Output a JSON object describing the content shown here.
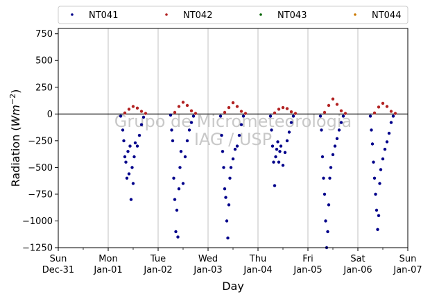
{
  "chart_data": {
    "type": "scatter",
    "title": "",
    "xlabel": "Day",
    "ylabel": "Radiation (Wm⁻²)",
    "ylabel_main": "Radiation (",
    "ylabel_unit": "Wm",
    "ylabel_exp": "−2",
    "ylabel_close": ")",
    "xlim": [
      "2017-12-31",
      "2018-01-07"
    ],
    "ylim": [
      -1250,
      800
    ],
    "yticks": [
      -1250,
      -1000,
      -750,
      -500,
      -250,
      0,
      250,
      500,
      750
    ],
    "yticklabels": [
      "−1250",
      "−1000",
      "−750",
      "−500",
      "−250",
      "0",
      "250",
      "500",
      "750"
    ],
    "xticks": [
      {
        "date": "2017-12-31",
        "day": "Sun",
        "label": "Dec-31"
      },
      {
        "date": "2018-01-01",
        "day": "Mon",
        "label": "Jan-01"
      },
      {
        "date": "2018-01-02",
        "day": "Tue",
        "label": "Jan-02"
      },
      {
        "date": "2018-01-03",
        "day": "Wed",
        "label": "Jan-03"
      },
      {
        "date": "2018-01-04",
        "day": "Thu",
        "label": "Jan-04"
      },
      {
        "date": "2018-01-05",
        "day": "Fri",
        "label": "Jan-05"
      },
      {
        "date": "2018-01-06",
        "day": "Sat",
        "label": "Jan-06"
      },
      {
        "date": "2018-01-07",
        "day": "Sun",
        "label": "Jan-07"
      }
    ],
    "grid": "vertical",
    "legend_position": "top",
    "watermark_lines": [
      "Grupo de Micrometeorologia",
      "IAG / USP"
    ],
    "series": [
      {
        "name": "NT041",
        "color": "#00008b",
        "values": [
          [
            "2018-01-01 06:00",
            -20
          ],
          [
            "2018-01-01 07:00",
            -150
          ],
          [
            "2018-01-01 07:30",
            -250
          ],
          [
            "2018-01-01 08:00",
            -400
          ],
          [
            "2018-01-01 08:30",
            -450
          ],
          [
            "2018-01-01 09:00",
            -600
          ],
          [
            "2018-01-01 09:30",
            -350
          ],
          [
            "2018-01-01 10:00",
            -560
          ],
          [
            "2018-01-01 10:30",
            -300
          ],
          [
            "2018-01-01 11:00",
            -800
          ],
          [
            "2018-01-01 11:30",
            -500
          ],
          [
            "2018-01-01 12:00",
            -650
          ],
          [
            "2018-01-01 12:30",
            -400
          ],
          [
            "2018-01-01 13:00",
            -270
          ],
          [
            "2018-01-01 14:00",
            -300
          ],
          [
            "2018-01-01 15:00",
            -200
          ],
          [
            "2018-01-01 16:00",
            -100
          ],
          [
            "2018-01-01 17:00",
            -30
          ],
          [
            "2018-01-02 06:00",
            -10
          ],
          [
            "2018-01-02 06:30",
            -150
          ],
          [
            "2018-01-02 07:00",
            -250
          ],
          [
            "2018-01-02 07:30",
            -600
          ],
          [
            "2018-01-02 08:00",
            -800
          ],
          [
            "2018-01-02 08:30",
            -1100
          ],
          [
            "2018-01-02 09:00",
            -900
          ],
          [
            "2018-01-02 09:30",
            -1150
          ],
          [
            "2018-01-02 10:00",
            -700
          ],
          [
            "2018-01-02 10:30",
            -500
          ],
          [
            "2018-01-02 11:00",
            -350
          ],
          [
            "2018-01-02 12:00",
            -650
          ],
          [
            "2018-01-02 13:00",
            -400
          ],
          [
            "2018-01-02 14:00",
            -250
          ],
          [
            "2018-01-02 15:00",
            -150
          ],
          [
            "2018-01-02 16:00",
            -80
          ],
          [
            "2018-01-02 17:00",
            -20
          ],
          [
            "2018-01-03 06:00",
            -20
          ],
          [
            "2018-01-03 06:30",
            -200
          ],
          [
            "2018-01-03 07:00",
            -350
          ],
          [
            "2018-01-03 07:30",
            -500
          ],
          [
            "2018-01-03 08:00",
            -700
          ],
          [
            "2018-01-03 08:30",
            -780
          ],
          [
            "2018-01-03 09:00",
            -1000
          ],
          [
            "2018-01-03 09:30",
            -1160
          ],
          [
            "2018-01-03 10:00",
            -850
          ],
          [
            "2018-01-03 10:30",
            -600
          ],
          [
            "2018-01-03 11:00",
            -500
          ],
          [
            "2018-01-03 12:00",
            -420
          ],
          [
            "2018-01-03 13:00",
            -330
          ],
          [
            "2018-01-03 14:00",
            -300
          ],
          [
            "2018-01-03 15:00",
            -200
          ],
          [
            "2018-01-03 16:00",
            -100
          ],
          [
            "2018-01-03 17:00",
            -20
          ],
          [
            "2018-01-04 06:00",
            -20
          ],
          [
            "2018-01-04 06:30",
            -150
          ],
          [
            "2018-01-04 07:00",
            -300
          ],
          [
            "2018-01-04 07:30",
            -450
          ],
          [
            "2018-01-04 08:00",
            -670
          ],
          [
            "2018-01-04 08:30",
            -400
          ],
          [
            "2018-01-04 09:00",
            -330
          ],
          [
            "2018-01-04 09:30",
            -260
          ],
          [
            "2018-01-04 10:00",
            -450
          ],
          [
            "2018-01-04 10:30",
            -350
          ],
          [
            "2018-01-04 11:00",
            -300
          ],
          [
            "2018-01-04 12:00",
            -480
          ],
          [
            "2018-01-04 13:00",
            -360
          ],
          [
            "2018-01-04 14:00",
            -250
          ],
          [
            "2018-01-04 15:00",
            -170
          ],
          [
            "2018-01-04 16:00",
            -80
          ],
          [
            "2018-01-04 17:00",
            -20
          ],
          [
            "2018-01-05 06:00",
            -20
          ],
          [
            "2018-01-05 06:30",
            -150
          ],
          [
            "2018-01-05 07:00",
            -400
          ],
          [
            "2018-01-05 07:30",
            -600
          ],
          [
            "2018-01-05 08:00",
            -750
          ],
          [
            "2018-01-05 08:30",
            -1000
          ],
          [
            "2018-01-05 09:00",
            -1250
          ],
          [
            "2018-01-05 09:30",
            -1100
          ],
          [
            "2018-01-05 10:00",
            -850
          ],
          [
            "2018-01-05 10:30",
            -600
          ],
          [
            "2018-01-05 11:00",
            -500
          ],
          [
            "2018-01-05 12:00",
            -380
          ],
          [
            "2018-01-05 13:00",
            -300
          ],
          [
            "2018-01-05 14:00",
            -230
          ],
          [
            "2018-01-05 15:00",
            -150
          ],
          [
            "2018-01-05 16:00",
            -80
          ],
          [
            "2018-01-05 17:00",
            -20
          ],
          [
            "2018-01-06 06:00",
            -20
          ],
          [
            "2018-01-06 06:30",
            -150
          ],
          [
            "2018-01-06 07:00",
            -280
          ],
          [
            "2018-01-06 07:30",
            -450
          ],
          [
            "2018-01-06 08:00",
            -600
          ],
          [
            "2018-01-06 08:30",
            -750
          ],
          [
            "2018-01-06 09:00",
            -900
          ],
          [
            "2018-01-06 09:30",
            -1080
          ],
          [
            "2018-01-06 10:00",
            -950
          ],
          [
            "2018-01-06 10:30",
            -650
          ],
          [
            "2018-01-06 11:00",
            -520
          ],
          [
            "2018-01-06 12:00",
            -420
          ],
          [
            "2018-01-06 13:00",
            -330
          ],
          [
            "2018-01-06 14:00",
            -260
          ],
          [
            "2018-01-06 15:00",
            -180
          ],
          [
            "2018-01-06 16:00",
            -80
          ],
          [
            "2018-01-06 17:00",
            -20
          ]
        ]
      },
      {
        "name": "NT042",
        "color": "#b22222",
        "values": [
          [
            "2018-01-01 08:00",
            10
          ],
          [
            "2018-01-01 10:00",
            45
          ],
          [
            "2018-01-01 12:00",
            70
          ],
          [
            "2018-01-01 14:00",
            55
          ],
          [
            "2018-01-01 16:00",
            25
          ],
          [
            "2018-01-01 18:00",
            5
          ],
          [
            "2018-01-02 08:00",
            15
          ],
          [
            "2018-01-02 10:00",
            70
          ],
          [
            "2018-01-02 12:00",
            110
          ],
          [
            "2018-01-02 14:00",
            80
          ],
          [
            "2018-01-02 16:00",
            30
          ],
          [
            "2018-01-02 18:00",
            5
          ],
          [
            "2018-01-03 08:00",
            15
          ],
          [
            "2018-01-03 10:00",
            60
          ],
          [
            "2018-01-03 12:00",
            105
          ],
          [
            "2018-01-03 14:00",
            70
          ],
          [
            "2018-01-03 16:00",
            25
          ],
          [
            "2018-01-03 18:00",
            5
          ],
          [
            "2018-01-04 08:00",
            10
          ],
          [
            "2018-01-04 10:00",
            45
          ],
          [
            "2018-01-04 12:00",
            60
          ],
          [
            "2018-01-04 14:00",
            50
          ],
          [
            "2018-01-04 16:00",
            20
          ],
          [
            "2018-01-04 18:00",
            5
          ],
          [
            "2018-01-05 08:00",
            15
          ],
          [
            "2018-01-05 10:00",
            80
          ],
          [
            "2018-01-05 12:00",
            140
          ],
          [
            "2018-01-05 14:00",
            90
          ],
          [
            "2018-01-05 16:00",
            30
          ],
          [
            "2018-01-05 18:00",
            5
          ],
          [
            "2018-01-06 08:00",
            10
          ],
          [
            "2018-01-06 10:00",
            65
          ],
          [
            "2018-01-06 12:00",
            100
          ],
          [
            "2018-01-06 14:00",
            70
          ],
          [
            "2018-01-06 16:00",
            25
          ],
          [
            "2018-01-06 18:00",
            5
          ]
        ]
      },
      {
        "name": "NT043",
        "color": "#006400",
        "values": []
      },
      {
        "name": "NT044",
        "color": "#cc7a00",
        "values": []
      }
    ]
  }
}
